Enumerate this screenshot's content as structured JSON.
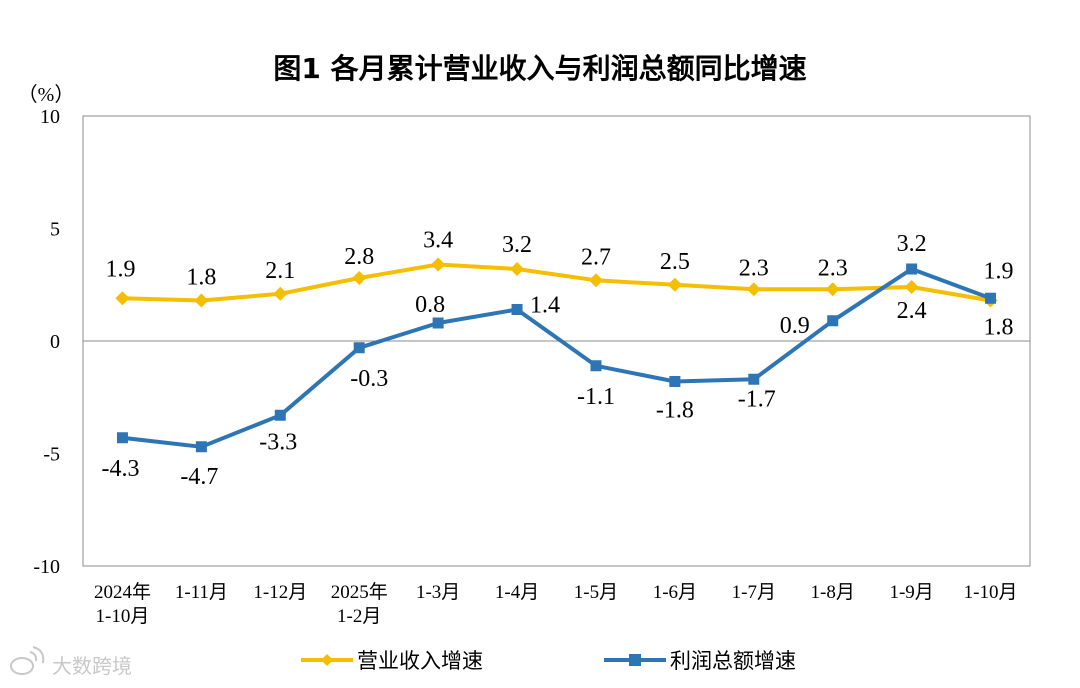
{
  "chart_data": {
    "type": "line",
    "title": "图1  各月累计营业收入与利润总额同比增速",
    "ylabel": "（%）",
    "ylim": [
      -10,
      10
    ],
    "yticks": [
      "10",
      "5",
      "0",
      "-5",
      "-10"
    ],
    "ytick_values": [
      10,
      5,
      0,
      -5,
      -10
    ],
    "categories": [
      [
        "2024年",
        "1-10月"
      ],
      [
        "1-11月"
      ],
      [
        "1-12月"
      ],
      [
        "2025年",
        "1-2月"
      ],
      [
        "1-3月"
      ],
      [
        "1-4月"
      ],
      [
        "1-5月"
      ],
      [
        "1-6月"
      ],
      [
        "1-7月"
      ],
      [
        "1-8月"
      ],
      [
        "1-9月"
      ],
      [
        "1-10月"
      ]
    ],
    "series": [
      {
        "name": "营业收入增速",
        "color": "#F5BE00",
        "marker": "diamond",
        "values": [
          1.9,
          1.8,
          2.1,
          2.8,
          3.4,
          3.2,
          2.7,
          2.5,
          2.3,
          2.3,
          2.4,
          1.8
        ],
        "labels": [
          "1.9",
          "1.8",
          "2.1",
          "2.8",
          "3.4",
          "3.2",
          "2.7",
          "2.5",
          "2.3",
          "2.3",
          "2.4",
          "1.8"
        ]
      },
      {
        "name": "利润总额增速",
        "color": "#2E75B6",
        "marker": "square",
        "values": [
          -4.3,
          -4.7,
          -3.3,
          -0.3,
          0.8,
          1.4,
          -1.1,
          -1.8,
          -1.7,
          0.9,
          3.2,
          1.9
        ],
        "labels": [
          "-4.3",
          "-4.7",
          "-3.3",
          "-0.3",
          "0.8",
          "1.4",
          "-1.1",
          "-1.8",
          "-1.7",
          "0.9",
          "3.2",
          "1.9"
        ]
      }
    ],
    "legend_position": "bottom"
  },
  "watermark": {
    "text": "大数跨境"
  }
}
